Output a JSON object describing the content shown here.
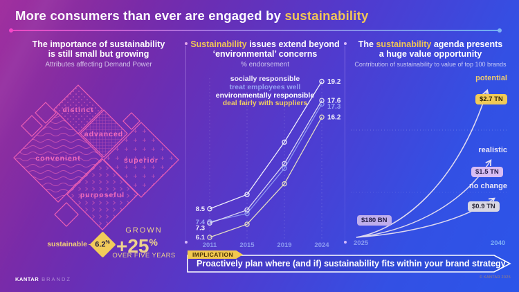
{
  "header": {
    "title_prefix": "More consumers than ever are engaged by ",
    "title_highlight": "sustainability"
  },
  "left_panel": {
    "title_line1": "The importance of sustainability",
    "title_line2": "is still small but growing",
    "subtitle": "Attributes affecting Demand Power",
    "diamond_labels": {
      "distinct": "distinct",
      "advanced": "advanced",
      "convenient": "convenient",
      "superior": "superior",
      "purposeful": "purposeful"
    },
    "sustainable": {
      "label": "sustainable",
      "value": "6.2",
      "pct": "%"
    },
    "growth": {
      "top": "GROWN",
      "value": "+25",
      "pct": "%",
      "bottom": "OVER FIVE YEARS"
    }
  },
  "middle_panel": {
    "title_highlight": "Sustainability",
    "title_rest": " issues extend beyond",
    "title_line2": "‘environmental’ concerns",
    "subtitle": "% endorsement"
  },
  "right_panel": {
    "title_prefix": "The ",
    "title_highlight": "sustainability",
    "title_suffix": " agenda presents",
    "title_line2": "a huge value opportunity",
    "subtitle": "Contribution of sustainability to value of top 100 brands"
  },
  "chart_data": [
    {
      "type": "line",
      "title": "Sustainability issues extend beyond 'environmental' concerns",
      "ylabel": "% endorsement",
      "x": [
        "2011",
        "2015",
        "2019",
        "2024"
      ],
      "ylim": [
        5,
        21
      ],
      "grid": "vertical-dashed",
      "legend_position": "top",
      "series": [
        {
          "name": "socially responsible",
          "values": [
            8.5,
            9.7,
            14.1,
            19.2
          ],
          "color": "#efeefb",
          "legend_color": "#f2f0fc",
          "label_color": "#f3f1fd"
        },
        {
          "name": "treat employees well",
          "values": [
            7.4,
            8.1,
            11.9,
            17.3
          ],
          "color": "#8e98f0",
          "legend_color": "#97a1f3",
          "label_color": "#9aa4f4"
        },
        {
          "name": "environmentally responsible",
          "values": [
            7.3,
            8.4,
            12.3,
            17.6
          ],
          "color": "#dcd9f1",
          "legend_color": "#ffffff",
          "label_color": "#ffffff"
        },
        {
          "name": "deal fairly with suppliers",
          "values": [
            6.1,
            7.2,
            10.6,
            16.2
          ],
          "color": "#e4dcc2",
          "legend_color": "#eec963",
          "label_color": "#f2f0fa"
        }
      ]
    },
    {
      "type": "line",
      "title": "The sustainability agenda presents a huge value opportunity",
      "subtitle": "Contribution of sustainability to value of top 100 brands",
      "x_axis": [
        "2025",
        "2040"
      ],
      "start_label": "$180 BN",
      "series": [
        {
          "name": "potential",
          "end_value": "$2.7 TN"
        },
        {
          "name": "realistic",
          "end_value": "$1.5 TN"
        },
        {
          "name": "no change",
          "end_value": "$0.9 TN"
        }
      ]
    }
  ],
  "implication": {
    "tag": "IMPLICATION",
    "text": "Proactively plan where (and if) sustainability fits within your brand strategy"
  },
  "footer": {
    "brand_bold": "KANTAR",
    "brand_light": "BRANDZ",
    "copyright": "© KANTAR 2025"
  },
  "colors": {
    "accent_yellow": "#f0c557",
    "accent_pink": "#ec5fb4",
    "badge_gold": "#f1ca57",
    "badge_lavender": "#d9bdf4",
    "badge_gray": "#d9d7e3"
  }
}
